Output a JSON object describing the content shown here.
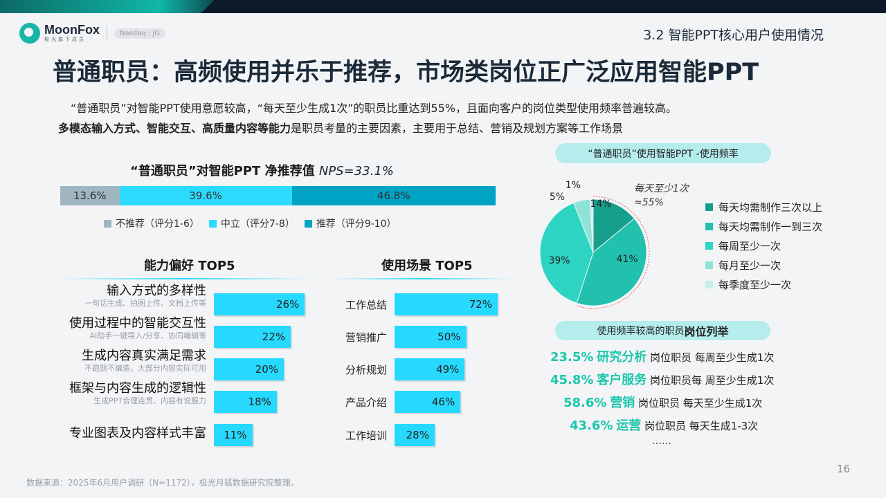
{
  "header": {
    "brand": "MoonFox",
    "brand_sub": "极光旗下成员",
    "badge": "Nasdaq : JG",
    "section": "3.2 智能PPT核心用户使用情况",
    "title": "普通职员：高频使用并乐于推荐，市场类岗位正广泛应用智能PPT",
    "intro1": "“普通职员”对智能PPT使用意愿较高，“每天至少生成1次”的职员比重达到55%，且面向客户的岗位类型使用频率普遍较高。",
    "intro2_bold": "多模态输入方式、智能交互、高质量内容等能力",
    "intro2_rest": "是职员考量的主要因素，主要用于总结、营销及规划方案等工作场景"
  },
  "colors": {
    "detractor": "#9fb6c1",
    "neutral": "#2cdafe",
    "promoter": "#00a3c4",
    "bar": "#27d8ff",
    "accent": "#1cc7ac"
  },
  "chart_data": [
    {
      "type": "bar",
      "orientation": "horizontal-stacked",
      "title_prefix": "“普通职员”对智能PPT 净推荐值 ",
      "title_metric": "NPS=33.1%",
      "categories": [
        "不推荐（评分1-6）",
        "中立（评分7-8）",
        "推荐（评分9-10）"
      ],
      "values": [
        13.6,
        39.6,
        46.8
      ],
      "labels": [
        "13.6%",
        "39.6%",
        "46.8%"
      ]
    },
    {
      "type": "bar",
      "orientation": "horizontal",
      "title": "能力偏好 TOP5",
      "categories": [
        "输入方式的多样性",
        "使用过程中的智能交互性",
        "生成内容真实满足需求",
        "框架与内容生成的逻辑性",
        "专业图表及内容样式丰富"
      ],
      "subtitles": [
        "一句话生成、拍图上传、文档上传等",
        "AI助手一键导入/分享、协同编辑等",
        "不跑题不编造，大部分内容实际可用",
        "生成PPT合理连贯、内容有说服力",
        ""
      ],
      "values": [
        26,
        22,
        20,
        18,
        11
      ],
      "labels": [
        "26%",
        "22%",
        "20%",
        "18%",
        "11%"
      ]
    },
    {
      "type": "bar",
      "orientation": "horizontal",
      "title": "使用场景 TOP5",
      "categories": [
        "工作总结",
        "营销推广",
        "分析规划",
        "产品介绍",
        "工作培训"
      ],
      "values": [
        72,
        50,
        49,
        46,
        28
      ],
      "labels": [
        "72%",
        "50%",
        "49%",
        "46%",
        "28%"
      ]
    },
    {
      "type": "pie",
      "title": "“普通职员”使用智能PPT -使用频率",
      "categories": [
        "每天均需制作三次以上",
        "每天均需制作一到三次",
        "每周至少一次",
        "每月至少一次",
        "每季度至少一次"
      ],
      "values": [
        14,
        41,
        39,
        5,
        1
      ],
      "labels": [
        "14%",
        "41%",
        "39%",
        "5%",
        "1%"
      ],
      "colors": [
        "#16a08c",
        "#22c1ad",
        "#2dd4c2",
        "#8ee3d6",
        "#c6efe9"
      ],
      "annotation_line1": "每天至少1次",
      "annotation_line2": "≈55%"
    }
  ],
  "positions": {
    "title_rest": "使用频率较高的职员",
    "title_bold": "岗位列举",
    "rows": [
      {
        "pct": "23.5%",
        "role": "研究分析",
        "text": "岗位职员 每周至少生成1次"
      },
      {
        "pct": "45.8%",
        "role": "客户服务",
        "text": "岗位职员每 周至少生成1次"
      },
      {
        "pct": "58.6%",
        "role": "营销",
        "text": "岗位职员 每天至少生成1次"
      },
      {
        "pct": "43.6%",
        "role": "运营",
        "text": "岗位职员 每天生成1-3次"
      }
    ],
    "more": "……"
  },
  "footer": {
    "source": "数据来源：2025年6月用户调研（N=1172），极光月狐数据研究院整理。",
    "page": "16"
  }
}
